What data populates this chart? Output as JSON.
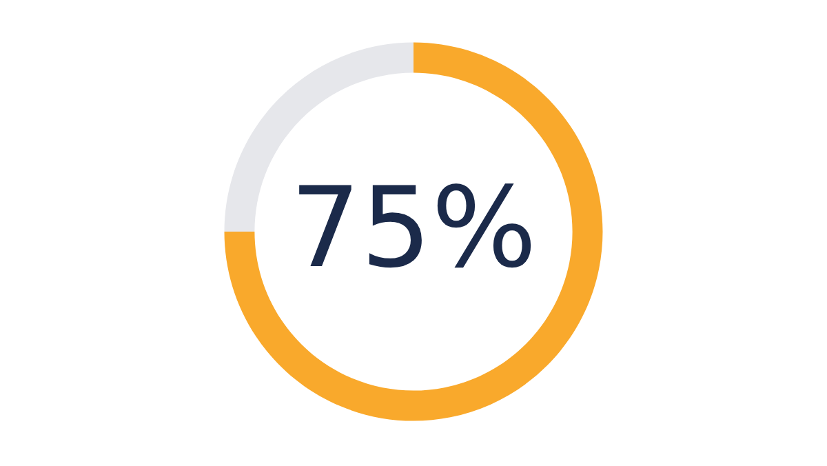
{
  "chart_data": {
    "type": "donut",
    "categories": [
      null,
      null
    ],
    "values": [
      75,
      25
    ],
    "colors": [
      "#f9a92c",
      "#e6e7eb"
    ],
    "annotations": [
      "75%"
    ]
  }
}
